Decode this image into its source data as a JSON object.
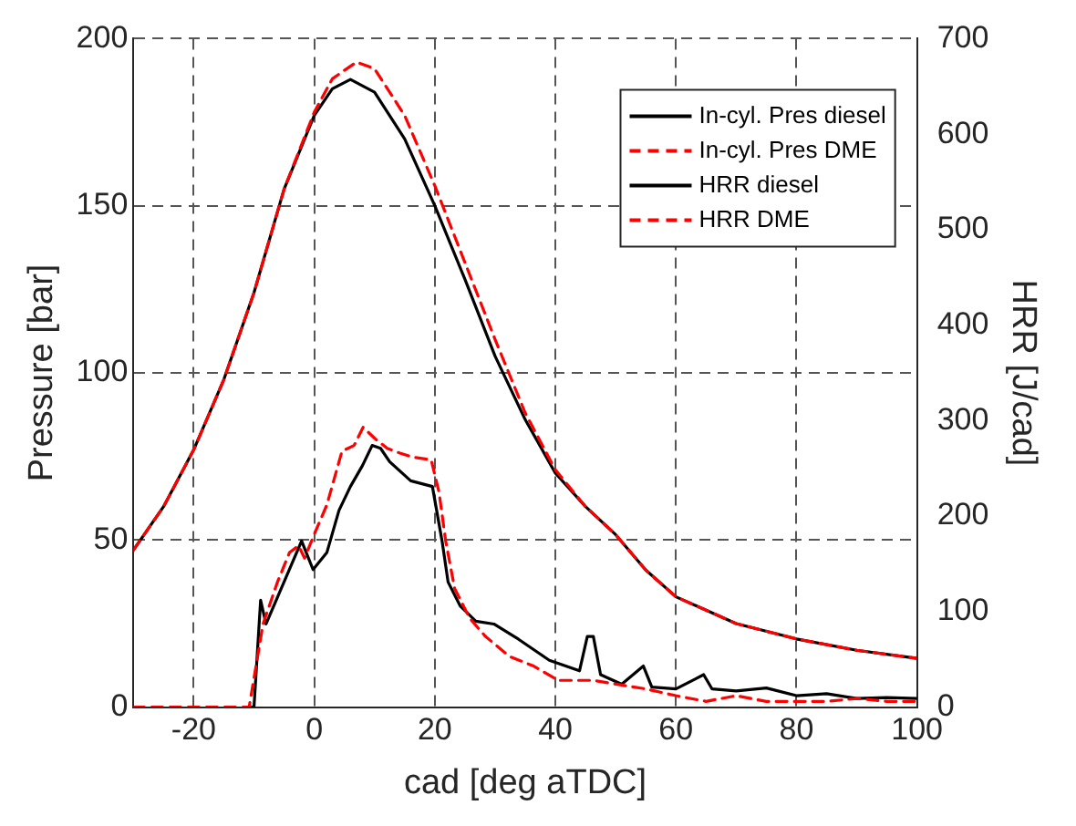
{
  "chart_data": {
    "type": "line",
    "xlabel": "cad [deg aTDC]",
    "ylabel": "Pressure [bar]",
    "y2label": "HRR [J/cad]",
    "xlim": [
      -30,
      100
    ],
    "xticks": [
      -20,
      0,
      20,
      40,
      60,
      80,
      100
    ],
    "ylim": [
      0,
      200
    ],
    "yticks": [
      0,
      50,
      100,
      150,
      200
    ],
    "y2lim": [
      0,
      700
    ],
    "y2ticks": [
      0,
      100,
      200,
      300,
      400,
      500,
      600,
      700
    ],
    "grid": true,
    "legend": "top right",
    "marker": "none",
    "series": [
      {
        "name": "In-cyl. Pres diesel",
        "color": "#000000",
        "line_style": "solid",
        "x": [
          -30,
          -25,
          -20,
          -15,
          -10,
          -5,
          0,
          3,
          6,
          10,
          15,
          20,
          25,
          30,
          35,
          40,
          45,
          50,
          55,
          60,
          70,
          80,
          90,
          100
        ],
        "values": [
          47,
          60,
          77,
          98,
          124,
          155,
          177,
          185,
          187.8,
          184,
          170,
          150,
          128,
          105,
          86,
          70,
          60,
          51.6,
          41,
          33,
          25,
          20.4,
          17,
          14.6
        ]
      },
      {
        "name": "In-cyl. Pres DME",
        "color": "#ff0000",
        "line_style": "dashed",
        "x": [
          -30,
          -25,
          -20,
          -15,
          -10,
          -5,
          0,
          3,
          7,
          10,
          15,
          20,
          25,
          30,
          35,
          40,
          45,
          50,
          55,
          60,
          70,
          80,
          90,
          100
        ],
        "values": [
          47,
          60,
          77,
          98,
          124,
          155,
          178,
          188,
          193,
          191,
          177,
          156,
          133,
          110,
          88,
          71,
          60,
          51.6,
          41,
          33,
          25,
          20.4,
          17,
          14.6
        ]
      },
      {
        "name": "HRR diesel",
        "color": "#000000",
        "line_style": "solid",
        "axis": "y2",
        "x": [
          -10.5,
          -10,
          -8.9,
          -8,
          -2.1,
          -0.2,
          2.1,
          4.1,
          6,
          8,
          9.6,
          11,
          12.5,
          16,
          19.6,
          21.2,
          22.2,
          24.2,
          26.8,
          29.8,
          33.9,
          39,
          44,
          45.3,
          46.3,
          47.5,
          51,
          54.6,
          56,
          60,
          64.6,
          66,
          70,
          75,
          80,
          85,
          90,
          95,
          100
        ],
        "values": [
          0,
          0,
          112,
          87,
          174,
          144,
          162,
          206,
          231,
          253,
          274,
          271,
          257,
          237,
          231,
          174,
          131,
          106,
          90,
          87,
          71,
          49,
          38,
          74,
          74,
          34,
          24,
          43,
          21,
          19,
          34,
          19,
          17,
          20,
          12,
          14,
          9,
          10,
          9
        ]
      },
      {
        "name": "HRR DME",
        "color": "#ff0000",
        "line_style": "dashed",
        "axis": "y2",
        "x": [
          -30,
          -10.8,
          -8.5,
          -6.1,
          -4.1,
          -2.6,
          -1.6,
          0,
          2.1,
          4.6,
          6.6,
          8.1,
          10.1,
          12.1,
          14.2,
          16.2,
          19.4,
          20.7,
          21.8,
          23.3,
          25.8,
          28.4,
          32.4,
          36.4,
          40.5,
          46.3,
          55,
          60,
          65,
          70,
          75,
          80,
          85,
          90,
          95,
          100
        ],
        "values": [
          0,
          0,
          87,
          131,
          162,
          169,
          156,
          181,
          212,
          268,
          274,
          293,
          281,
          271,
          266,
          262,
          259,
          225,
          174,
          124,
          93,
          74,
          53,
          43,
          28,
          28,
          19,
          12,
          6,
          12,
          6,
          6,
          6,
          9,
          6,
          6
        ]
      }
    ]
  }
}
